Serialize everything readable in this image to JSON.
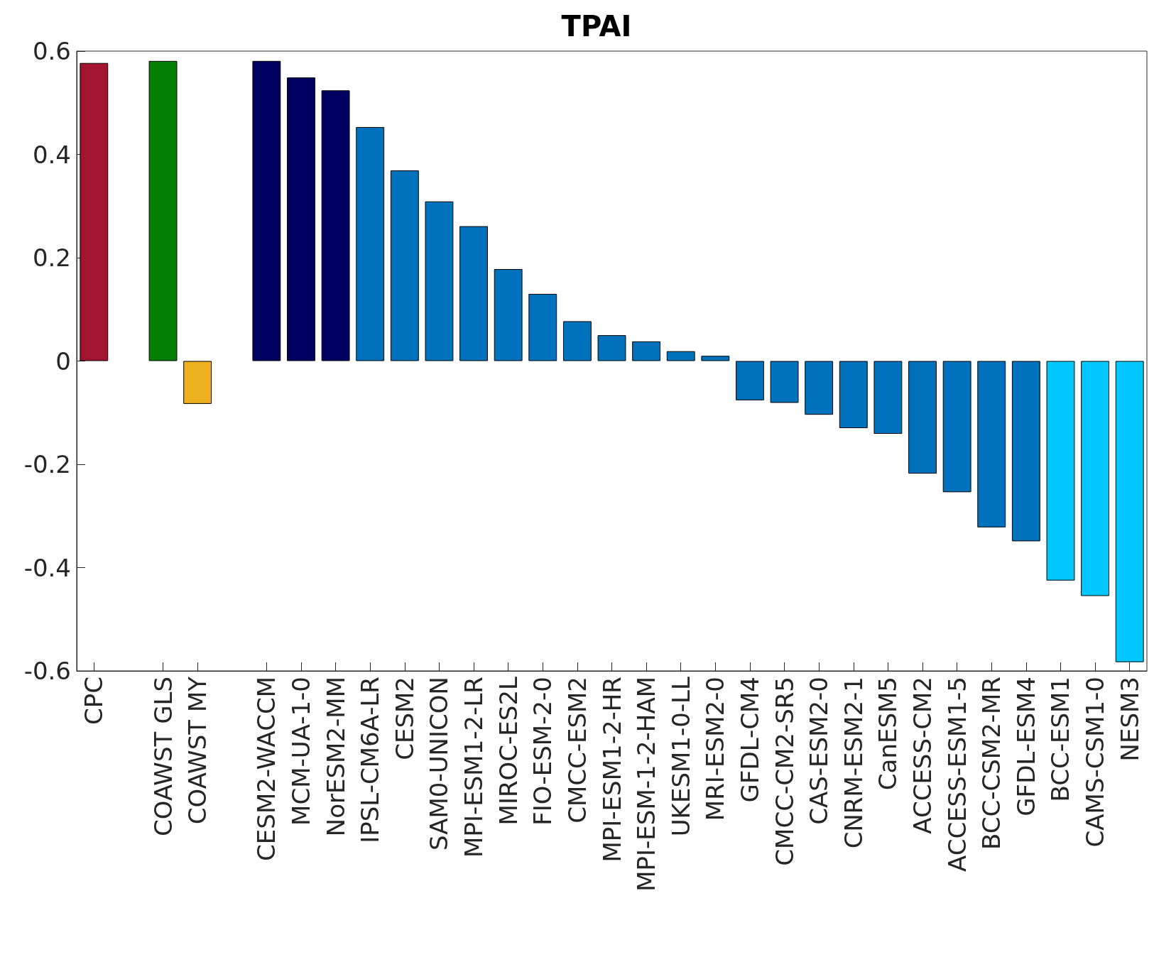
{
  "chart_data": {
    "type": "bar",
    "title": "TPAI",
    "categories": [
      "CPC",
      null,
      "COAWST GLS",
      "COAWST MY",
      null,
      "CESM2-WACCM",
      "MCM-UA-1-0",
      "NorESM2-MM",
      "IPSL-CM6A-LR",
      "CESM2",
      "SAM0-UNICON",
      "MPI-ESM1-2-LR",
      "MIROC-ES2L",
      "FIO-ESM-2-0",
      "CMCC-ESM2",
      "MPI-ESM1-2-HR",
      "MPI-ESM-1-2-HAM",
      "UKESM1-0-LL",
      "MRI-ESM2-0",
      "GFDL-CM4",
      "CMCC-CM2-SR5",
      "CAS-ESM2-0",
      "CNRM-ESM2-1",
      "CanESM5",
      "ACCESS-CM2",
      "ACCESS-ESM1-5",
      "BCC-CSM2-MR",
      "GFDL-ESM4",
      "BCC-ESM1",
      "CAMS-CSM1-0",
      "NESM3"
    ],
    "values": [
      0.577,
      null,
      0.581,
      -0.083,
      null,
      0.581,
      0.549,
      0.524,
      0.453,
      0.369,
      0.309,
      0.261,
      0.178,
      0.13,
      0.077,
      0.05,
      0.038,
      0.019,
      0.01,
      -0.076,
      -0.081,
      -0.104,
      -0.13,
      -0.141,
      -0.218,
      -0.254,
      -0.322,
      -0.349,
      -0.425,
      -0.455,
      -0.583
    ],
    "colors": [
      "#a2142f",
      null,
      "#007f00",
      "#edb120",
      null,
      "#000060",
      "#000060",
      "#000060",
      "#0072bd",
      "#0072bd",
      "#0072bd",
      "#0072bd",
      "#0072bd",
      "#0072bd",
      "#0072bd",
      "#0072bd",
      "#0072bd",
      "#0072bd",
      "#0072bd",
      "#0072bd",
      "#0072bd",
      "#0072bd",
      "#0072bd",
      "#0072bd",
      "#0072bd",
      "#0072bd",
      "#0072bd",
      "#0072bd",
      "#00c8ff",
      "#00c8ff",
      "#00c8ff"
    ],
    "ylim": [
      -0.6,
      0.6
    ],
    "yticks": [
      -0.6,
      -0.4,
      -0.2,
      0,
      0.2,
      0.4,
      0.6
    ],
    "grid": false
  }
}
